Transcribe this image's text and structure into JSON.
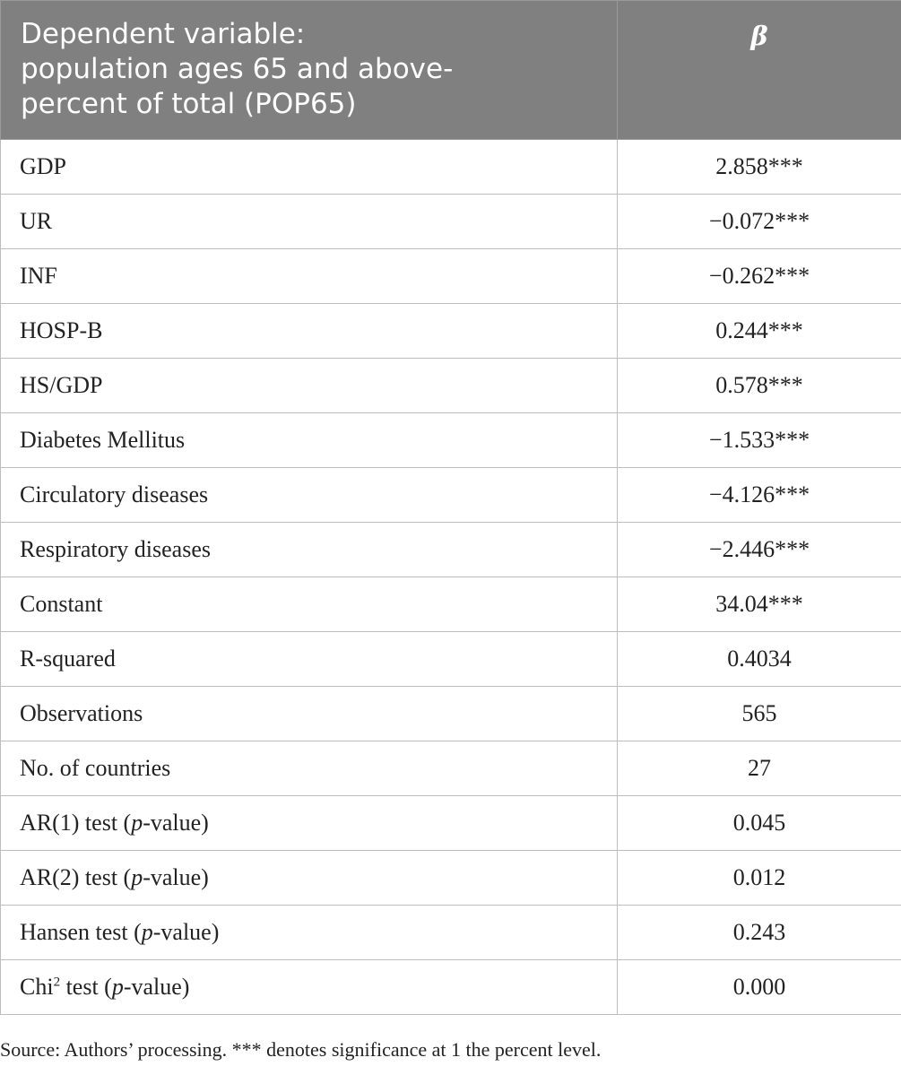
{
  "header": {
    "label_lines": [
      "Dependent variable:",
      "population ages 65 and above-",
      "percent of total (POP65)"
    ],
    "beta": "β"
  },
  "rows": [
    {
      "label": "GDP",
      "value": "2.858***"
    },
    {
      "label": "UR",
      "value": "−0.072***"
    },
    {
      "label": "INF",
      "value": "−0.262***"
    },
    {
      "label": "HOSP-B",
      "value": "0.244***"
    },
    {
      "label": "HS/GDP",
      "value": "0.578***"
    },
    {
      "label": "Diabetes Mellitus",
      "value": "−1.533***"
    },
    {
      "label": "Circulatory diseases",
      "value": "−4.126***"
    },
    {
      "label": "Respiratory diseases",
      "value": "−2.446***"
    },
    {
      "label": "Constant",
      "value": "34.04***"
    },
    {
      "label": "R-squared",
      "value": "0.4034"
    },
    {
      "label": "Observations",
      "value": "565"
    },
    {
      "label": "No. of countries",
      "value": "27"
    },
    {
      "label_pre": "AR(1) test (",
      "label_it": "p",
      "label_post": "-value)",
      "value": "0.045"
    },
    {
      "label_pre": "AR(2) test (",
      "label_it": "p",
      "label_post": "-value)",
      "value": "0.012"
    },
    {
      "label_pre": "Hansen test (",
      "label_it": "p",
      "label_post": "-value)",
      "value": "0.243"
    },
    {
      "label_pre": "Chi",
      "label_sup": "2",
      "label_mid": " test (",
      "label_it": "p",
      "label_post": "-value)",
      "value": "0.000"
    }
  ],
  "footnote": "Source: Authors’ processing. *** denotes significance at 1 the percent level."
}
